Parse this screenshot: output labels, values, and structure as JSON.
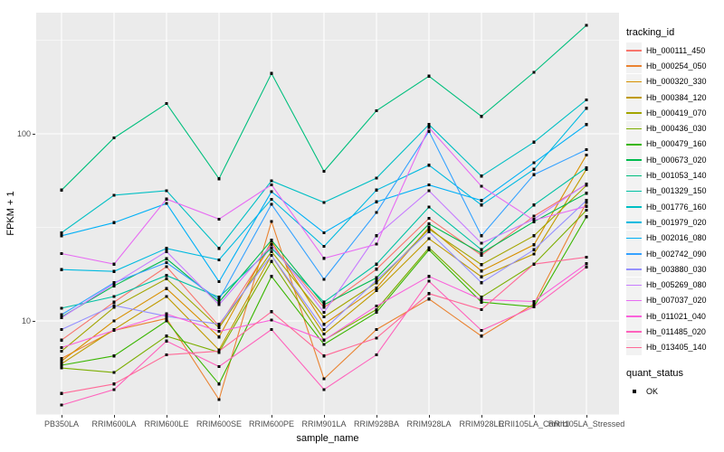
{
  "panel": {
    "bg_color": "#EBEBEB",
    "grid_color": "#FFFFFF",
    "point_color": "#000000",
    "tick_color": "#333333",
    "axis_text_color": "#4d4d4d"
  },
  "chart_data": {
    "type": "line",
    "title": "",
    "xlabel": "sample_name",
    "ylabel": "FPKM + 1",
    "y_scale": "log10",
    "ylim": [
      3.2,
      440
    ],
    "grid": {
      "major": [
        10,
        100
      ],
      "minor": [
        3.162,
        31.62,
        316.2
      ]
    },
    "y_axis_ticks": [
      {
        "label": "100",
        "value": 100
      },
      {
        "label": "10",
        "value": 10
      }
    ],
    "x_categories": [
      "PB350LA",
      "RRIM600LA",
      "RRIM600LE",
      "RRIM600SE",
      "RRIM600PE",
      "RRIM901LA",
      "RRIM928BA",
      "RRIM928LA",
      "RRIM928LE",
      "RRII105LA_Control",
      "RRII105LA_Stressed"
    ],
    "legend_title": "tracking_id",
    "legend_position": "right",
    "legend2_title": "quant_status",
    "legend2_items": [
      {
        "label": "OK",
        "marker": "black-square"
      }
    ],
    "series": [
      {
        "name": "Hb_000111_450",
        "color": "#F8766D",
        "values": [
          7.9,
          12.6,
          19.5,
          9.4,
          25.5,
          11.8,
          18.9,
          35.3,
          22.4,
          36.3,
          53.7
        ]
      },
      {
        "name": "Hb_000254_050",
        "color": "#EA8331",
        "values": [
          6.3,
          8.9,
          10.3,
          3.8,
          34.0,
          4.9,
          9.0,
          13.1,
          8.3,
          12.3,
          43.0
        ]
      },
      {
        "name": "Hb_000320_330",
        "color": "#D89000",
        "values": [
          6.1,
          10.0,
          14.9,
          8.2,
          26.6,
          9.6,
          15.0,
          31.6,
          18.5,
          25.5,
          77.0
        ]
      },
      {
        "name": "Hb_000384_120",
        "color": "#C09B00",
        "values": [
          5.9,
          9.0,
          13.5,
          7.0,
          22.4,
          8.5,
          14.5,
          27.5,
          17.2,
          22.8,
          64.6
        ]
      },
      {
        "name": "Hb_000419_070",
        "color": "#A3A500",
        "values": [
          6.9,
          11.8,
          16.8,
          9.2,
          23.5,
          10.5,
          16.0,
          31.0,
          20.0,
          28.5,
          53.0
        ]
      },
      {
        "name": "Hb_000436_030",
        "color": "#7CAE00",
        "values": [
          5.6,
          5.3,
          8.3,
          6.8,
          20.8,
          7.9,
          11.5,
          24.6,
          13.4,
          20.1,
          39.0
        ]
      },
      {
        "name": "Hb_000479_160",
        "color": "#39B600",
        "values": [
          5.8,
          6.5,
          10.0,
          4.6,
          17.3,
          7.5,
          11.1,
          24.0,
          12.6,
          11.9,
          36.0
        ]
      },
      {
        "name": "Hb_000673_020",
        "color": "#00BB4E",
        "values": [
          10.5,
          15.4,
          21.5,
          12.6,
          27.0,
          12.2,
          17.0,
          33.0,
          23.0,
          33.9,
          48.1
        ]
      },
      {
        "name": "Hb_001053_140",
        "color": "#00BF7D",
        "values": [
          50.0,
          95.0,
          145.0,
          57.5,
          210.0,
          63.0,
          133.0,
          203.0,
          124.0,
          213.0,
          380.0
        ]
      },
      {
        "name": "Hb_001329_150",
        "color": "#00C1A3",
        "values": [
          11.7,
          13.5,
          17.5,
          13.4,
          24.5,
          12.6,
          20.1,
          40.6,
          24.0,
          41.6,
          66.0
        ]
      },
      {
        "name": "Hb_001776_160",
        "color": "#00BFC4",
        "values": [
          29.6,
          47.0,
          49.7,
          24.4,
          56.0,
          43.0,
          58.0,
          112.0,
          59.4,
          90.2,
          152.0
        ]
      },
      {
        "name": "Hb_001979_020",
        "color": "#00BAE0",
        "values": [
          18.8,
          18.4,
          24.4,
          21.2,
          44.7,
          25.0,
          50.0,
          68.0,
          41.6,
          64.6,
          137.0
        ]
      },
      {
        "name": "Hb_002016_080",
        "color": "#00B0F6",
        "values": [
          28.5,
          33.5,
          42.4,
          16.2,
          49.0,
          29.6,
          43.3,
          53.3,
          44.0,
          70.0,
          112.0
        ]
      },
      {
        "name": "Hb_002742_090",
        "color": "#35A2FF",
        "values": [
          10.8,
          16.0,
          20.5,
          13.0,
          42.0,
          16.7,
          38.0,
          103.0,
          28.5,
          60.5,
          82.2
        ]
      },
      {
        "name": "Hb_003880_030",
        "color": "#9590FF",
        "values": [
          9.0,
          12.1,
          10.6,
          9.6,
          22.4,
          9.0,
          16.5,
          30.0,
          16.0,
          24.0,
          44.0
        ]
      },
      {
        "name": "Hb_005269_080",
        "color": "#C77CFF",
        "values": [
          10.4,
          15.8,
          23.5,
          12.2,
          25.5,
          11.1,
          28.5,
          49.6,
          26.0,
          35.0,
          54.0
        ]
      },
      {
        "name": "Hb_007037_020",
        "color": "#E76BF3",
        "values": [
          22.9,
          20.1,
          44.8,
          35.0,
          53.4,
          21.6,
          25.7,
          108.0,
          52.4,
          34.5,
          41.0
        ]
      },
      {
        "name": "Hb_011021_040",
        "color": "#FA62DB",
        "values": [
          7.2,
          8.9,
          10.9,
          8.8,
          10.1,
          7.9,
          12.0,
          17.3,
          13.0,
          12.7,
          20.2
        ]
      },
      {
        "name": "Hb_011485_020",
        "color": "#FF62BC",
        "values": [
          3.55,
          4.3,
          7.8,
          5.7,
          9.0,
          4.3,
          6.6,
          16.3,
          8.9,
          11.9,
          19.4
        ]
      },
      {
        "name": "Hb_013405_140",
        "color": "#FF6A98",
        "values": [
          4.1,
          4.6,
          6.6,
          6.9,
          11.2,
          6.5,
          8.1,
          14.0,
          11.5,
          20.1,
          21.9
        ]
      }
    ]
  }
}
